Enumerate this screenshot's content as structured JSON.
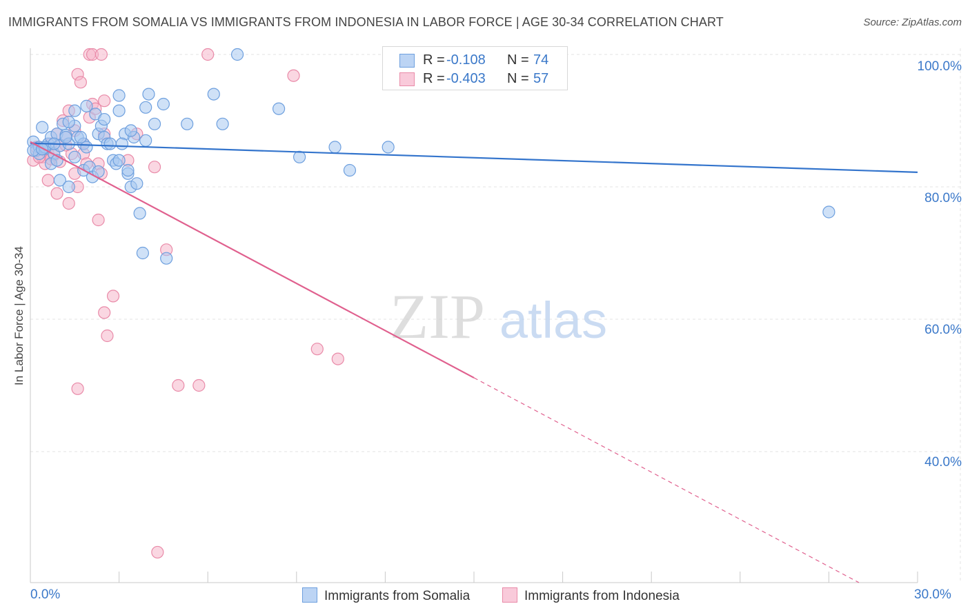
{
  "title": "IMMIGRANTS FROM SOMALIA VS IMMIGRANTS FROM INDONESIA IN LABOR FORCE | AGE 30-34 CORRELATION CHART",
  "source": "Source: ZipAtlas.com",
  "watermark": {
    "zip": "ZIP",
    "atlas": "atlas"
  },
  "colors": {
    "somalia_fill": "#a8c8f0",
    "somalia_stroke": "#6d9fde",
    "somalia_line": "#3374cc",
    "indonesia_fill": "#f6b6ca",
    "indonesia_stroke": "#e98aa8",
    "indonesia_line": "#e0608e",
    "axis_text": "#3a78c9",
    "grid": "#e3e3e3"
  },
  "legend": {
    "somalia": {
      "r_label": "R =",
      "r_value": "-0.108",
      "n_label": "N =",
      "n_value": "74"
    },
    "indonesia": {
      "r_label": "R =",
      "r_value": "-0.403",
      "n_label": "N =",
      "n_value": "57"
    }
  },
  "chart_data": {
    "type": "scatter",
    "title": "IMMIGRANTS FROM SOMALIA VS IMMIGRANTS FROM INDONESIA IN LABOR FORCE | AGE 30-34 CORRELATION CHART",
    "xlabel": "",
    "ylabel": "In Labor Force | Age 30-34",
    "xlim": [
      0,
      30
    ],
    "ylim": [
      20,
      102
    ],
    "x_tick_labels": {
      "min": "0.0%",
      "max": "30.0%"
    },
    "y_ticks": [
      100,
      80,
      60,
      40
    ],
    "y_tick_labels": [
      "100.0%",
      "80.0%",
      "60.0%",
      "40.0%"
    ],
    "series": [
      {
        "name": "Immigrants from Somalia",
        "trend": {
          "x0": 0.0,
          "y0": 86.6,
          "x1": 30.0,
          "y1": 82.2,
          "dashed_from": null
        },
        "points": [
          [
            0.1,
            86.8
          ],
          [
            0.2,
            85.5
          ],
          [
            0.3,
            86.0
          ],
          [
            0.4,
            89.0
          ],
          [
            0.5,
            85.8
          ],
          [
            0.6,
            86.5
          ],
          [
            0.7,
            87.5
          ],
          [
            0.8,
            85.0
          ],
          [
            0.9,
            88.0
          ],
          [
            1.0,
            86.2
          ],
          [
            1.1,
            89.5
          ],
          [
            1.2,
            87.8
          ],
          [
            1.3,
            86.5
          ],
          [
            0.7,
            83.5
          ],
          [
            1.0,
            81.0
          ],
          [
            1.3,
            80.0
          ],
          [
            1.5,
            89.2
          ],
          [
            1.6,
            87.5
          ],
          [
            1.8,
            86.5
          ],
          [
            1.8,
            82.5
          ],
          [
            2.0,
            83.0
          ],
          [
            2.1,
            81.5
          ],
          [
            2.3,
            88.0
          ],
          [
            2.4,
            89.2
          ],
          [
            2.5,
            87.5
          ],
          [
            2.6,
            86.5
          ],
          [
            2.8,
            84.0
          ],
          [
            2.9,
            83.5
          ],
          [
            3.0,
            84.0
          ],
          [
            3.2,
            88.0
          ],
          [
            3.3,
            82.0
          ],
          [
            3.4,
            80.0
          ],
          [
            3.5,
            87.5
          ],
          [
            3.6,
            80.5
          ],
          [
            3.1,
            86.5
          ],
          [
            2.7,
            86.5
          ],
          [
            3.9,
            92.0
          ],
          [
            4.2,
            89.5
          ],
          [
            4.0,
            94.0
          ],
          [
            5.3,
            89.5
          ],
          [
            3.0,
            93.8
          ],
          [
            3.0,
            91.5
          ],
          [
            2.2,
            91.0
          ],
          [
            1.9,
            92.2
          ],
          [
            1.5,
            91.5
          ],
          [
            1.3,
            89.8
          ],
          [
            2.5,
            90.2
          ],
          [
            6.2,
            94.0
          ],
          [
            7.0,
            100.0
          ],
          [
            8.4,
            91.8
          ],
          [
            10.3,
            86.0
          ],
          [
            10.8,
            82.5
          ],
          [
            12.1,
            86.0
          ],
          [
            9.1,
            84.5
          ],
          [
            6.5,
            89.5
          ],
          [
            3.4,
            88.5
          ],
          [
            3.9,
            87.0
          ],
          [
            3.7,
            76.0
          ],
          [
            3.8,
            70.0
          ],
          [
            4.6,
            69.2
          ],
          [
            1.2,
            87.5
          ],
          [
            0.3,
            85.0
          ],
          [
            0.5,
            86.0
          ],
          [
            0.8,
            86.5
          ],
          [
            1.9,
            86.0
          ],
          [
            1.5,
            84.5
          ],
          [
            2.3,
            82.3
          ],
          [
            4.5,
            92.5
          ],
          [
            1.7,
            87.5
          ],
          [
            0.9,
            84.0
          ],
          [
            3.3,
            82.5
          ],
          [
            27.0,
            76.2
          ],
          [
            0.1,
            85.5
          ],
          [
            0.4,
            85.7
          ]
        ]
      },
      {
        "name": "Immigrants from Indonesia",
        "trend": {
          "x0": 0.0,
          "y0": 86.8,
          "x1": 30.0,
          "y1": 15.5,
          "dashed_from": 15.0
        },
        "points": [
          [
            0.1,
            84.0
          ],
          [
            0.2,
            85.5
          ],
          [
            0.3,
            86.0
          ],
          [
            0.4,
            84.5
          ],
          [
            0.5,
            83.5
          ],
          [
            0.6,
            85.0
          ],
          [
            0.7,
            86.5
          ],
          [
            0.8,
            84.8
          ],
          [
            0.9,
            88.0
          ],
          [
            1.0,
            86.2
          ],
          [
            1.1,
            90.0
          ],
          [
            1.2,
            87.5
          ],
          [
            1.3,
            91.5
          ],
          [
            0.6,
            81.0
          ],
          [
            0.9,
            79.0
          ],
          [
            1.3,
            77.5
          ],
          [
            1.5,
            82.0
          ],
          [
            1.6,
            80.0
          ],
          [
            1.8,
            86.5
          ],
          [
            2.0,
            90.5
          ],
          [
            2.1,
            92.5
          ],
          [
            2.3,
            83.5
          ],
          [
            2.4,
            82.0
          ],
          [
            2.5,
            88.0
          ],
          [
            2.3,
            75.0
          ],
          [
            2.5,
            93.0
          ],
          [
            1.6,
            97.0
          ],
          [
            1.7,
            95.8
          ],
          [
            2.0,
            100.0
          ],
          [
            2.1,
            100.0
          ],
          [
            2.4,
            100.0
          ],
          [
            6.0,
            100.0
          ],
          [
            8.9,
            96.8
          ],
          [
            2.5,
            61.0
          ],
          [
            2.6,
            57.5
          ],
          [
            2.8,
            63.5
          ],
          [
            3.3,
            84.0
          ],
          [
            4.2,
            83.0
          ],
          [
            4.6,
            70.5
          ],
          [
            1.6,
            49.5
          ],
          [
            5.0,
            50.0
          ],
          [
            5.7,
            50.0
          ],
          [
            9.7,
            55.5
          ],
          [
            10.4,
            54.0
          ],
          [
            4.3,
            24.8
          ],
          [
            1.4,
            85.0
          ],
          [
            1.2,
            86.3
          ],
          [
            0.7,
            84.2
          ],
          [
            0.3,
            84.5
          ],
          [
            0.5,
            85.7
          ],
          [
            1.8,
            85.0
          ],
          [
            2.2,
            91.8
          ],
          [
            1.0,
            83.8
          ],
          [
            1.5,
            88.5
          ],
          [
            3.6,
            88.0
          ],
          [
            0.2,
            86.0
          ],
          [
            1.9,
            83.5
          ]
        ]
      }
    ]
  }
}
